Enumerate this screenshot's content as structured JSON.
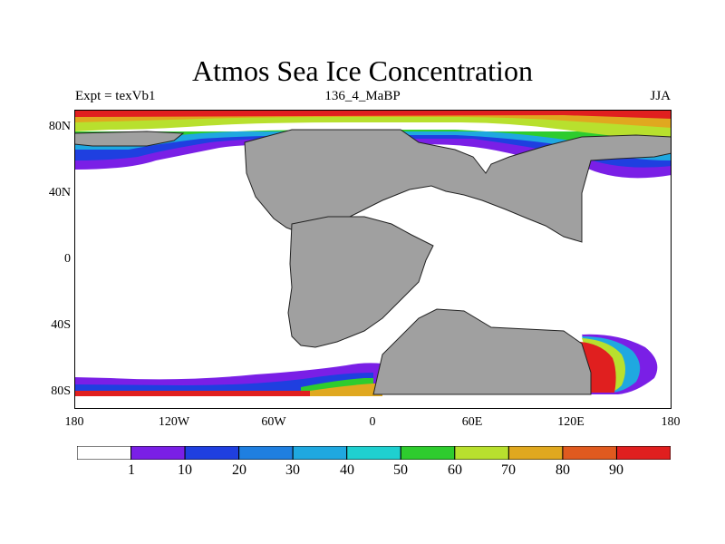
{
  "title": "Atmos Sea Ice Concentration",
  "subtitle_left": "Expt = texVb1",
  "subtitle_center": "136_4_MaBP",
  "subtitle_right": "JJA",
  "lat_labels": [
    "80N",
    "40N",
    "0",
    "40S",
    "80S"
  ],
  "lon_labels": [
    "180",
    "120W",
    "60W",
    "0",
    "60E",
    "120E",
    "180"
  ],
  "colorbar": {
    "labels": [
      "1",
      "10",
      "20",
      "30",
      "40",
      "50",
      "60",
      "70",
      "80",
      "90"
    ],
    "colors": [
      "#ffffff",
      "#7a1fe6",
      "#1f3fe0",
      "#1f7fe0",
      "#1fa8e0",
      "#1fd0d0",
      "#2ecc2e",
      "#b8e02e",
      "#e0a81f",
      "#e05a1f",
      "#e01f1f"
    ]
  },
  "land_color": "#a0a0a0"
}
